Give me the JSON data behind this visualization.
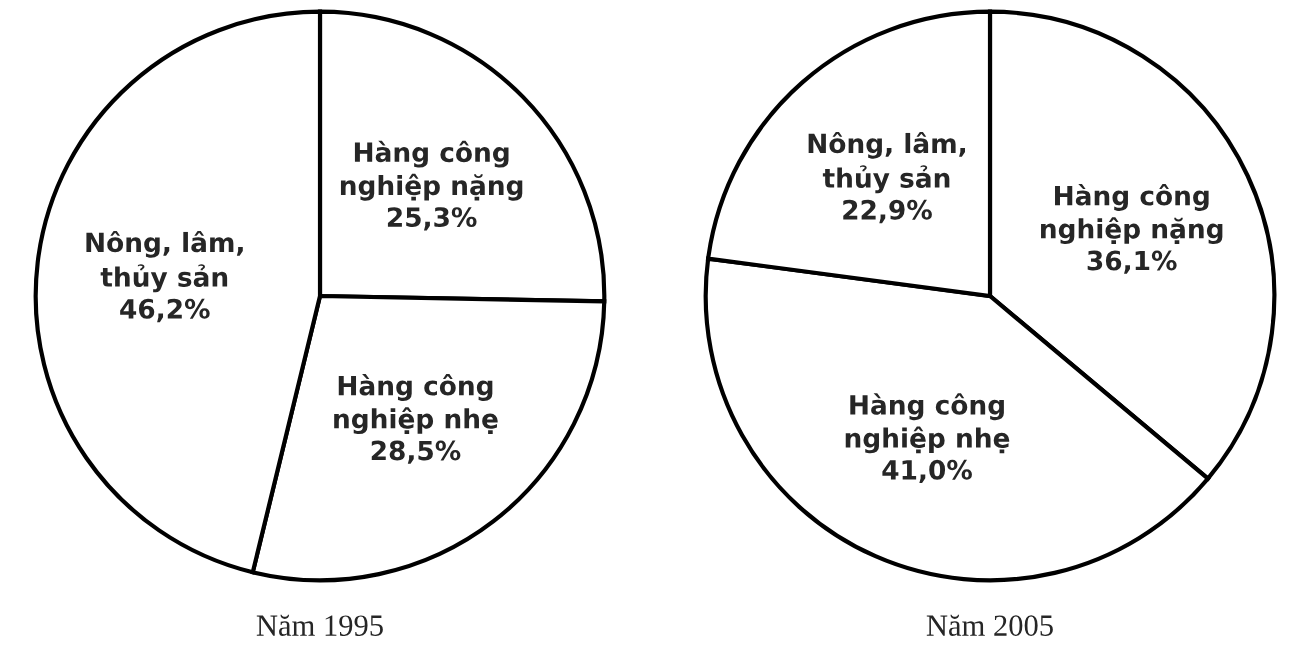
{
  "chart_data": [
    {
      "type": "pie",
      "title": "Năm 1995",
      "categories": [
        "Hàng công\nnghiệp nặng",
        "Hàng công\nnghiệp nhẹ",
        "Nông, lâm,\nthủy sản"
      ],
      "values": [
        25.3,
        28.5,
        46.2
      ],
      "value_labels": [
        "25,3%",
        "28,5%",
        "46,2%"
      ],
      "colors": [
        "#ffffff",
        "#ffffff",
        "#ffffff"
      ],
      "legend": false
    },
    {
      "type": "pie",
      "title": "Năm 2005",
      "categories": [
        "Hàng công\nnghiệp nặng",
        "Hàng công\nnghiệp nhẹ",
        "Nông, lâm,\nthủy sản"
      ],
      "values": [
        36.1,
        41.0,
        22.9
      ],
      "value_labels": [
        "36,1%",
        "41,0%",
        "22,9%"
      ],
      "colors": [
        "#ffffff",
        "#ffffff",
        "#ffffff"
      ],
      "legend": false
    }
  ]
}
